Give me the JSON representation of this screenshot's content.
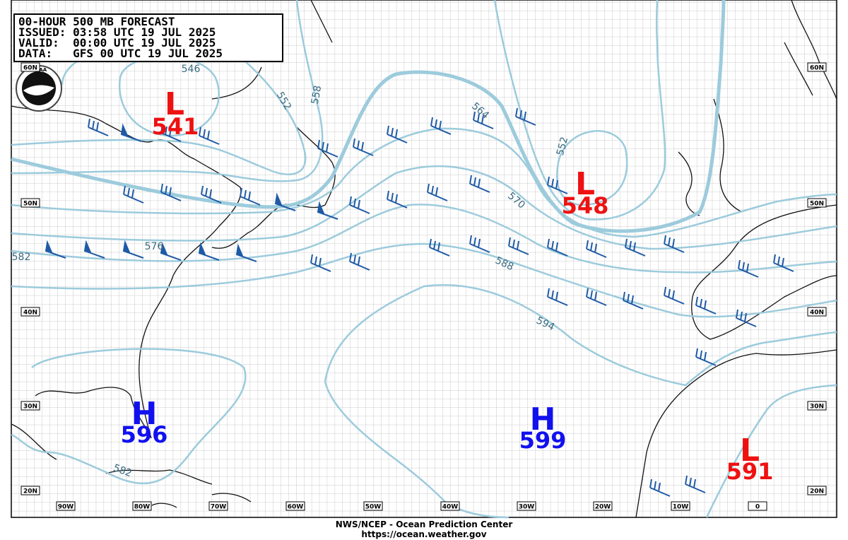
{
  "header": {
    "title": "00-HOUR 500 MB FORECAST",
    "issued": "ISSUED: 03:58 UTC 19 JUL 2025",
    "valid": "VALID:  00:00 UTC 19 JUL 2025",
    "data": "DATA:   GFS 00 UTC 19 JUL 2025"
  },
  "logo": "NOAA",
  "centers": [
    {
      "symbol": "L",
      "value": 541
    },
    {
      "symbol": "L",
      "value": 548
    },
    {
      "symbol": "H",
      "value": 596
    },
    {
      "symbol": "H",
      "value": 599
    },
    {
      "symbol": "L",
      "value": 591
    }
  ],
  "contour_labels": [
    546,
    552,
    558,
    564,
    570,
    576,
    582,
    588,
    594,
    552,
    582
  ],
  "lat_labels": [
    "60N",
    "50N",
    "40N",
    "30N",
    "20N"
  ],
  "lon_labels": [
    "90W",
    "80W",
    "70W",
    "60W",
    "50W",
    "40W",
    "30W",
    "20W",
    "10W",
    "0"
  ],
  "footer": {
    "agency": "NWS/NCEP - Ocean Prediction Center",
    "url": "https://ocean.weather.gov"
  }
}
